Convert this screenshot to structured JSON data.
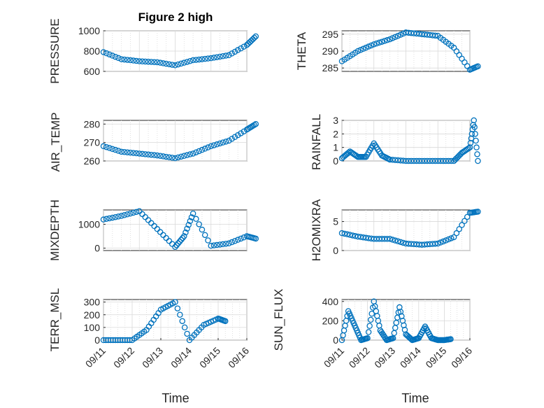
{
  "figure": {
    "title": "Figure 2 high",
    "xlabel": "Time"
  },
  "style": {
    "marker_color": "#0072BD",
    "axis_color": "#262626",
    "grid_color": "#d9d9d9"
  },
  "chart_data": [
    {
      "type": "scatter",
      "ylabel": "PRESSURE",
      "title": "Figure 2 high",
      "xlabel": "",
      "xlim": [
        "09/11",
        "09/15"
      ],
      "ylim": [
        600,
        1000
      ],
      "yticks": [
        600,
        800,
        1000
      ],
      "x": [
        "09/11",
        "09/11 12:00",
        "09/12",
        "09/12 12:00",
        "09/13",
        "09/13 12:00",
        "09/14",
        "09/14 12:00",
        "09/15",
        "09/15 06:00"
      ],
      "y": [
        790,
        720,
        700,
        690,
        660,
        710,
        730,
        760,
        860,
        945
      ]
    },
    {
      "type": "scatter",
      "ylabel": "THETA",
      "xlabel": "",
      "xlim": [
        "09/11",
        "09/15"
      ],
      "ylim": [
        284,
        296
      ],
      "yticks": [
        285,
        290,
        295
      ],
      "x": [
        "09/11",
        "09/11 12:00",
        "09/12",
        "09/12 12:00",
        "09/13",
        "09/13 12:00",
        "09/14",
        "09/14 12:00",
        "09/15",
        "09/15 06:00"
      ],
      "y": [
        287,
        290,
        292,
        293.5,
        295.5,
        295,
        294.5,
        291,
        284.5,
        285.5
      ]
    },
    {
      "type": "scatter",
      "ylabel": "AIR_TEMP",
      "xlabel": "",
      "xlim": [
        "09/11",
        "09/15"
      ],
      "ylim": [
        260,
        282
      ],
      "yticks": [
        260,
        270,
        280
      ],
      "x": [
        "09/11",
        "09/11 12:00",
        "09/12",
        "09/12 12:00",
        "09/13",
        "09/13 12:00",
        "09/14",
        "09/14 12:00",
        "09/15",
        "09/15 06:00"
      ],
      "y": [
        268,
        265,
        264,
        263,
        261.5,
        264,
        268,
        271,
        277,
        280
      ]
    },
    {
      "type": "scatter",
      "ylabel": "RAINFALL",
      "xlabel": "",
      "xlim": [
        "09/11",
        "09/15"
      ],
      "ylim": [
        0,
        3
      ],
      "yticks": [
        0,
        1,
        2,
        3
      ],
      "x": [
        "09/11",
        "09/11 06:00",
        "09/11 12:00",
        "09/11 18:00",
        "09/12",
        "09/12 06:00",
        "09/12 12:00",
        "09/13",
        "09/13 12:00",
        "09/14",
        "09/14 12:00",
        "09/14 18:00",
        "09/15",
        "09/15 03:00",
        "09/15 06:00"
      ],
      "y": [
        0.2,
        0.7,
        0.3,
        0.3,
        1.3,
        0.4,
        0.1,
        0,
        0,
        0,
        0,
        0.6,
        1.0,
        3.0,
        0
      ]
    },
    {
      "type": "scatter",
      "ylabel": "MIXDEPTH",
      "xlabel": "",
      "xlim": [
        "09/11",
        "09/15"
      ],
      "ylim": [
        -100,
        1600
      ],
      "yticks": [
        0,
        1000
      ],
      "x": [
        "09/11",
        "09/11 12:00",
        "09/12",
        "09/12 12:00",
        "09/13",
        "09/13 06:00",
        "09/13 12:00",
        "09/14",
        "09/14 12:00",
        "09/15",
        "09/15 06:00"
      ],
      "y": [
        1200,
        1350,
        1550,
        800,
        50,
        500,
        1450,
        100,
        200,
        500,
        400
      ]
    },
    {
      "type": "scatter",
      "ylabel": "H2OMIXRA",
      "xlabel": "",
      "xlim": [
        "09/11",
        "09/15"
      ],
      "ylim": [
        0,
        7
      ],
      "yticks": [
        0,
        5
      ],
      "x": [
        "09/11",
        "09/11 12:00",
        "09/12",
        "09/12 12:00",
        "09/13",
        "09/13 12:00",
        "09/14",
        "09/14 12:00",
        "09/15",
        "09/15 06:00"
      ],
      "y": [
        3,
        2.4,
        2,
        2,
        1.2,
        1,
        1.2,
        2.3,
        6.5,
        6.7
      ]
    },
    {
      "type": "scatter",
      "ylabel": "TERR_MSL",
      "xlabel": "Time",
      "xlim": [
        "09/11",
        "09/16"
      ],
      "ylim": [
        0,
        320
      ],
      "yticks": [
        0,
        100,
        200,
        300
      ],
      "xticks": [
        "09/11",
        "09/12",
        "09/13",
        "09/14",
        "09/15",
        "09/16"
      ],
      "x": [
        "09/11",
        "09/11 12:00",
        "09/12",
        "09/12 12:00",
        "09/13",
        "09/13 12:00",
        "09/14",
        "09/14 12:00",
        "09/15",
        "09/15 06:00"
      ],
      "y": [
        0,
        0,
        0,
        80,
        240,
        300,
        0,
        120,
        170,
        150
      ]
    },
    {
      "type": "scatter",
      "ylabel": "SUN_FLUX",
      "xlabel": "Time",
      "xlim": [
        "09/11",
        "09/16"
      ],
      "ylim": [
        0,
        420
      ],
      "yticks": [
        0,
        200,
        400
      ],
      "xticks": [
        "09/11",
        "09/12",
        "09/13",
        "09/14",
        "09/15",
        "09/16"
      ],
      "x": [
        "09/11",
        "09/11 06:00",
        "09/11 12:00",
        "09/11 18:00",
        "09/12",
        "09/12 06:00",
        "09/12 12:00",
        "09/12 18:00",
        "09/13",
        "09/13 06:00",
        "09/13 12:00",
        "09/13 18:00",
        "09/14",
        "09/14 06:00",
        "09/14 12:00",
        "09/14 18:00",
        "09/15",
        "09/15 06:00"
      ],
      "y": [
        0,
        300,
        150,
        0,
        20,
        400,
        100,
        0,
        20,
        340,
        60,
        0,
        20,
        140,
        20,
        0,
        0,
        10
      ]
    }
  ]
}
